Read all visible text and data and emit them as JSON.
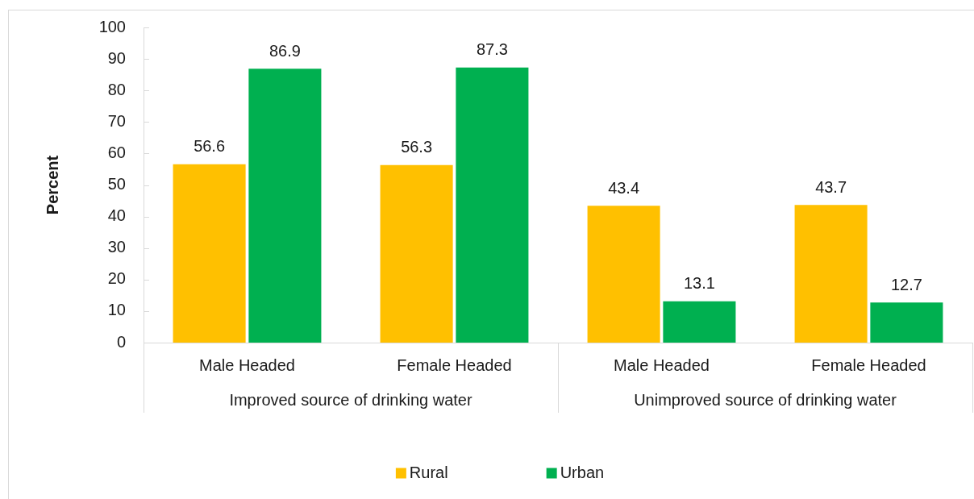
{
  "chart_data": {
    "type": "bar",
    "ylabel": "Percent",
    "categories": [
      "Male Headed",
      "Female Headed",
      "Male Headed",
      "Female Headed"
    ],
    "series": [
      {
        "name": "Rural",
        "color": "#ffc000",
        "values": [
          56.6,
          56.3,
          43.4,
          43.7
        ]
      },
      {
        "name": "Urban",
        "color": "#00b050",
        "values": [
          86.9,
          87.3,
          13.1,
          12.7
        ]
      }
    ],
    "ylim": [
      0,
      100
    ],
    "yticks": [
      0,
      10,
      20,
      30,
      40,
      50,
      60,
      70,
      80,
      90,
      100
    ],
    "grid": false,
    "legend": "bottom",
    "data_labels": true,
    "annotations": [
      "Improved source of drinking water",
      "Unimproved source of drinking water"
    ]
  }
}
